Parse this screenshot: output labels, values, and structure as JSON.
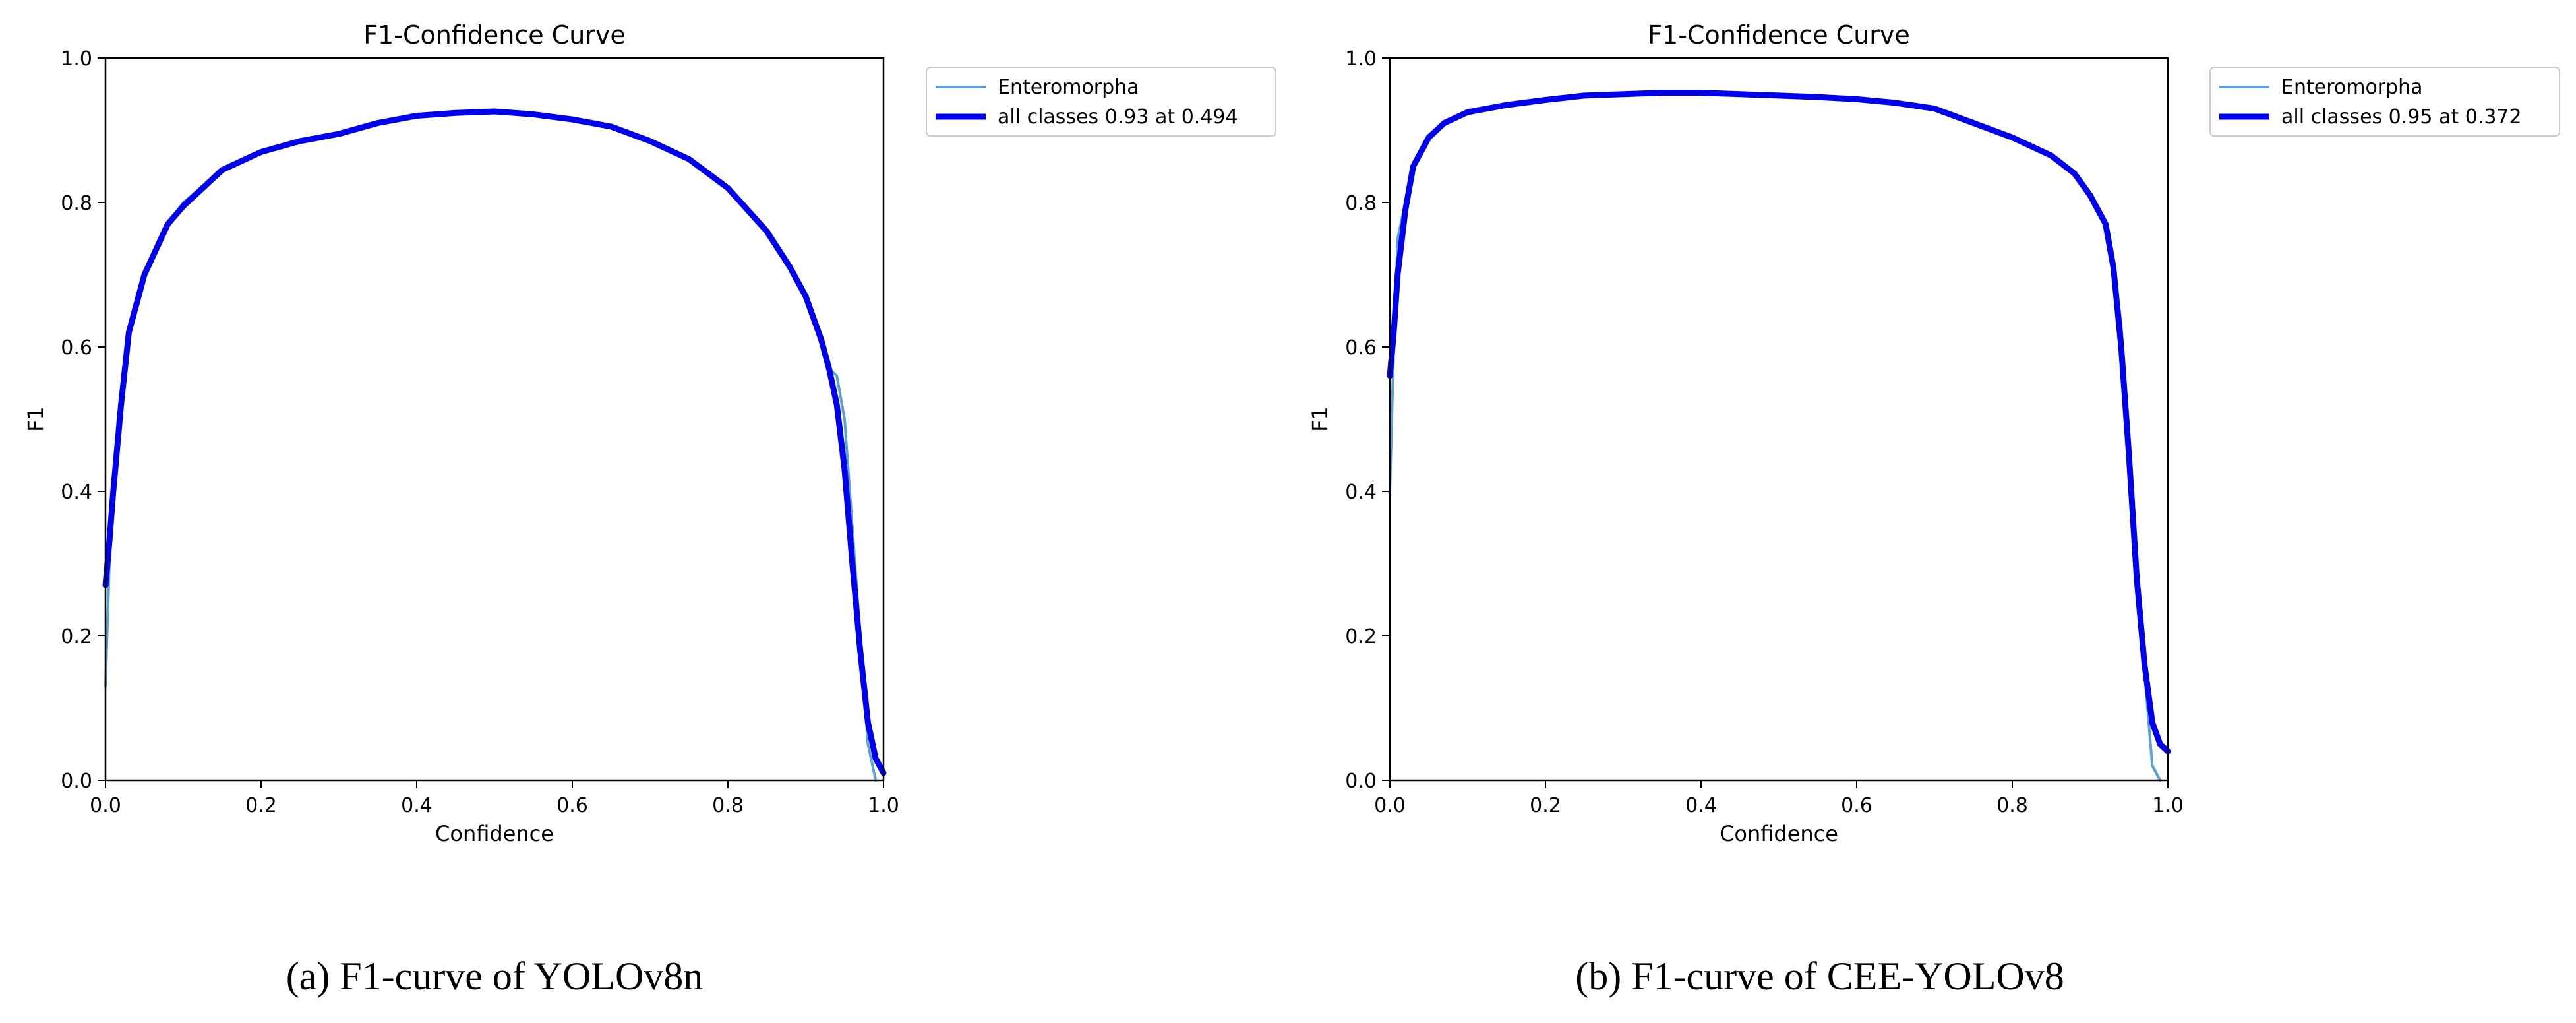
{
  "chart_data": [
    {
      "type": "line",
      "title": "F1-Confidence Curve",
      "xlabel": "Confidence",
      "ylabel": "F1",
      "xlim": [
        0.0,
        1.0
      ],
      "ylim": [
        0.0,
        1.0
      ],
      "xticks": [
        "0.0",
        "0.2",
        "0.4",
        "0.6",
        "0.8",
        "1.0"
      ],
      "yticks": [
        "0.0",
        "0.2",
        "0.4",
        "0.6",
        "0.8",
        "1.0"
      ],
      "grid": false,
      "legend_position": "outside-right",
      "caption": "(a) F1-curve of YOLOv8n",
      "series": [
        {
          "name": "Enteromorpha",
          "color": "#5ba3d0",
          "x": [
            0.0,
            0.005,
            0.01,
            0.02,
            0.03,
            0.05,
            0.08,
            0.1,
            0.15,
            0.2,
            0.25,
            0.3,
            0.35,
            0.4,
            0.45,
            0.5,
            0.55,
            0.6,
            0.65,
            0.7,
            0.75,
            0.8,
            0.85,
            0.88,
            0.9,
            0.92,
            0.93,
            0.94,
            0.95,
            0.96,
            0.97,
            0.98,
            0.99
          ],
          "y": [
            0.13,
            0.3,
            0.4,
            0.52,
            0.62,
            0.7,
            0.77,
            0.8,
            0.845,
            0.87,
            0.885,
            0.895,
            0.91,
            0.92,
            0.925,
            0.925,
            0.92,
            0.915,
            0.905,
            0.885,
            0.86,
            0.82,
            0.76,
            0.71,
            0.67,
            0.61,
            0.57,
            0.56,
            0.5,
            0.35,
            0.2,
            0.05,
            0.0
          ]
        },
        {
          "name": "all classes 0.93 at 0.494",
          "color": "#0000ee",
          "x": [
            0.0,
            0.005,
            0.01,
            0.02,
            0.03,
            0.05,
            0.08,
            0.1,
            0.15,
            0.2,
            0.25,
            0.3,
            0.35,
            0.4,
            0.45,
            0.5,
            0.55,
            0.6,
            0.65,
            0.7,
            0.75,
            0.8,
            0.85,
            0.88,
            0.9,
            0.92,
            0.93,
            0.94,
            0.95,
            0.96,
            0.97,
            0.98,
            0.99,
            1.0
          ],
          "y": [
            0.27,
            0.33,
            0.4,
            0.52,
            0.62,
            0.7,
            0.77,
            0.795,
            0.845,
            0.87,
            0.885,
            0.895,
            0.91,
            0.92,
            0.924,
            0.926,
            0.922,
            0.915,
            0.905,
            0.885,
            0.86,
            0.82,
            0.76,
            0.71,
            0.67,
            0.61,
            0.57,
            0.52,
            0.43,
            0.3,
            0.18,
            0.08,
            0.03,
            0.01
          ]
        }
      ]
    },
    {
      "type": "line",
      "title": "F1-Confidence Curve",
      "xlabel": "Confidence",
      "ylabel": "F1",
      "xlim": [
        0.0,
        1.0
      ],
      "ylim": [
        0.0,
        1.0
      ],
      "xticks": [
        "0.0",
        "0.2",
        "0.4",
        "0.6",
        "0.8",
        "1.0"
      ],
      "yticks": [
        "0.0",
        "0.2",
        "0.4",
        "0.6",
        "0.8",
        "1.0"
      ],
      "grid": false,
      "legend_position": "outside-right",
      "caption": "(b) F1-curve of CEE-YOLOv8",
      "series": [
        {
          "name": "Enteromorpha",
          "color": "#5ba3d0",
          "x": [
            0.0,
            0.005,
            0.01,
            0.02,
            0.03,
            0.05,
            0.07,
            0.1,
            0.15,
            0.2,
            0.25,
            0.3,
            0.35,
            0.4,
            0.45,
            0.5,
            0.55,
            0.6,
            0.65,
            0.7,
            0.75,
            0.8,
            0.85,
            0.88,
            0.9,
            0.92,
            0.93,
            0.94,
            0.95,
            0.96,
            0.97,
            0.98,
            0.99
          ],
          "y": [
            0.4,
            0.6,
            0.75,
            0.8,
            0.85,
            0.89,
            0.91,
            0.925,
            0.935,
            0.942,
            0.948,
            0.95,
            0.952,
            0.952,
            0.95,
            0.948,
            0.946,
            0.943,
            0.938,
            0.93,
            0.91,
            0.89,
            0.865,
            0.84,
            0.81,
            0.77,
            0.72,
            0.63,
            0.48,
            0.3,
            0.15,
            0.02,
            0.0
          ]
        },
        {
          "name": "all classes 0.95 at 0.372",
          "color": "#0000ee",
          "x": [
            0.0,
            0.005,
            0.01,
            0.02,
            0.03,
            0.05,
            0.07,
            0.1,
            0.15,
            0.2,
            0.25,
            0.3,
            0.35,
            0.4,
            0.45,
            0.5,
            0.55,
            0.6,
            0.65,
            0.7,
            0.75,
            0.8,
            0.85,
            0.88,
            0.9,
            0.92,
            0.93,
            0.94,
            0.95,
            0.96,
            0.97,
            0.98,
            0.99,
            1.0
          ],
          "y": [
            0.56,
            0.62,
            0.7,
            0.79,
            0.85,
            0.89,
            0.91,
            0.925,
            0.935,
            0.942,
            0.948,
            0.95,
            0.952,
            0.952,
            0.95,
            0.948,
            0.946,
            0.943,
            0.938,
            0.93,
            0.91,
            0.89,
            0.865,
            0.84,
            0.81,
            0.77,
            0.71,
            0.6,
            0.45,
            0.28,
            0.16,
            0.08,
            0.05,
            0.04
          ]
        }
      ]
    }
  ]
}
